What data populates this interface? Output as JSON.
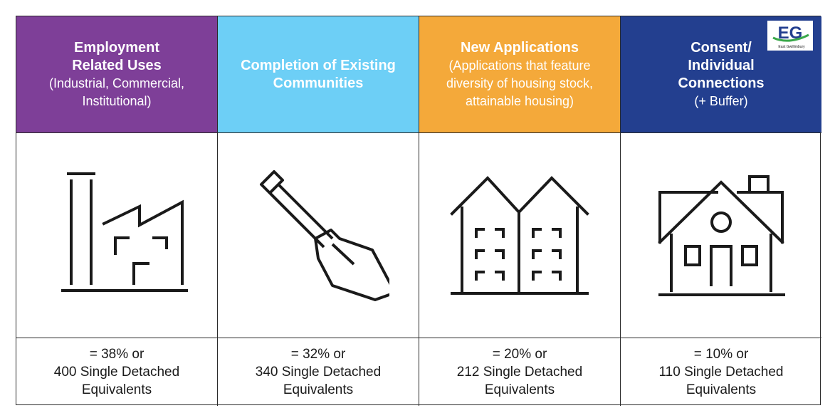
{
  "logo": {
    "mark": "EG",
    "caption": "East Gwillimbury"
  },
  "columns": [
    {
      "title": "Employment Related Uses",
      "subtitle": "(Industrial, Commercial, Institutional)",
      "color": "#7e3f98",
      "icon": "factory-icon",
      "stat_line1": "= 38% or",
      "stat_line2": "400 Single Detached",
      "stat_line3": "Equivalents"
    },
    {
      "title": "Completion of Existing Communities",
      "subtitle": "",
      "color": "#6dcff6",
      "icon": "shovel-icon",
      "stat_line1": "= 32% or",
      "stat_line2": "340 Single Detached",
      "stat_line3": "Equivalents"
    },
    {
      "title": "New Applications",
      "subtitle": "(Applications that feature diversity of housing stock, attainable housing)",
      "color": "#f4a93a",
      "icon": "townhouses-icon",
      "stat_line1": "= 20% or",
      "stat_line2": "212 Single Detached",
      "stat_line3": "Equivalents"
    },
    {
      "title": "Consent/ Individual Connections",
      "subtitle": "(+ Buffer)",
      "color": "#233f8f",
      "icon": "house-icon",
      "stat_line1": "= 10% or",
      "stat_line2": "110 Single Detached",
      "stat_line3": "Equivalents"
    }
  ]
}
